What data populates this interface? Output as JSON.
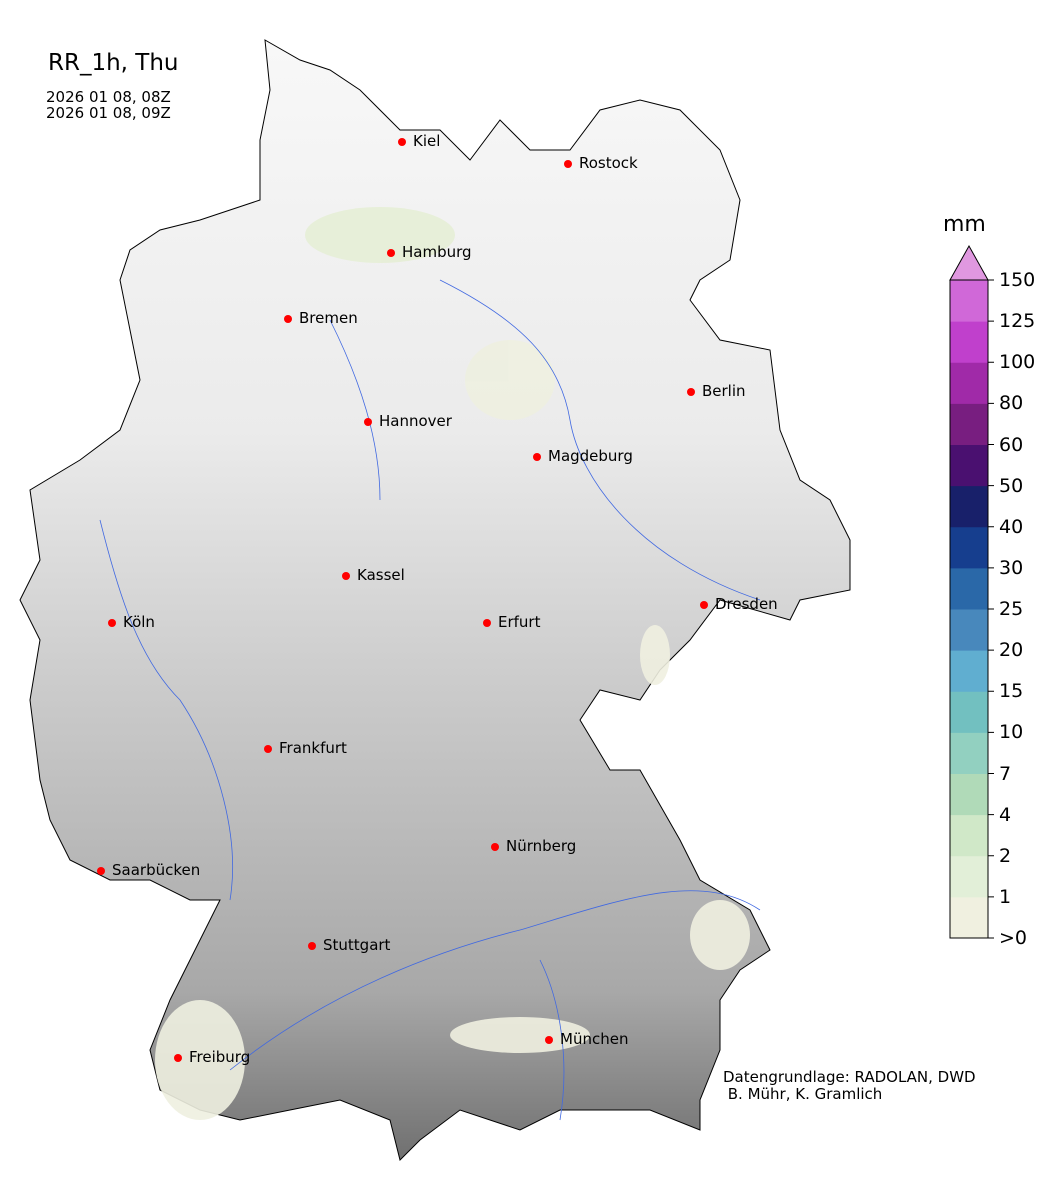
{
  "map": {
    "title": "RR_1h, Thu",
    "time_start": "2026 01 08, 08Z",
    "time_end": "2026 01 08, 09Z",
    "credit_line1": "Datengrundlage: RADOLAN, DWD",
    "credit_line2": " B. Mühr, K. Gramlich",
    "cities": [
      "Kiel",
      "Rostock",
      "Hamburg",
      "Bremen",
      "Berlin",
      "Hannover",
      "Magdeburg",
      "Kassel",
      "Köln",
      "Erfurt",
      "Dresden",
      "Frankfurt",
      "Nürnberg",
      "Saarbücken",
      "Stuttgart",
      "München",
      "Freiburg"
    ],
    "city_marker_color": "#ff0000",
    "river_color": "#4169e1"
  },
  "colorbar": {
    "unit": "mm",
    "ticks": [
      ">0",
      "1",
      "2",
      "4",
      "7",
      "10",
      "15",
      "20",
      "25",
      "30",
      "40",
      "50",
      "60",
      "80",
      "100",
      "125",
      "150"
    ],
    "colors": [
      "#f0f0e0",
      "#e2efd8",
      "#d0e8c8",
      "#b0dab8",
      "#92d0c0",
      "#72c0c0",
      "#60aed0",
      "#4888bc",
      "#2a68a8",
      "#163e8e",
      "#18206a",
      "#4a1070",
      "#781e80",
      "#a02aa8",
      "#c040cc",
      "#d068d8"
    ],
    "extend_color": "#e098e0"
  }
}
